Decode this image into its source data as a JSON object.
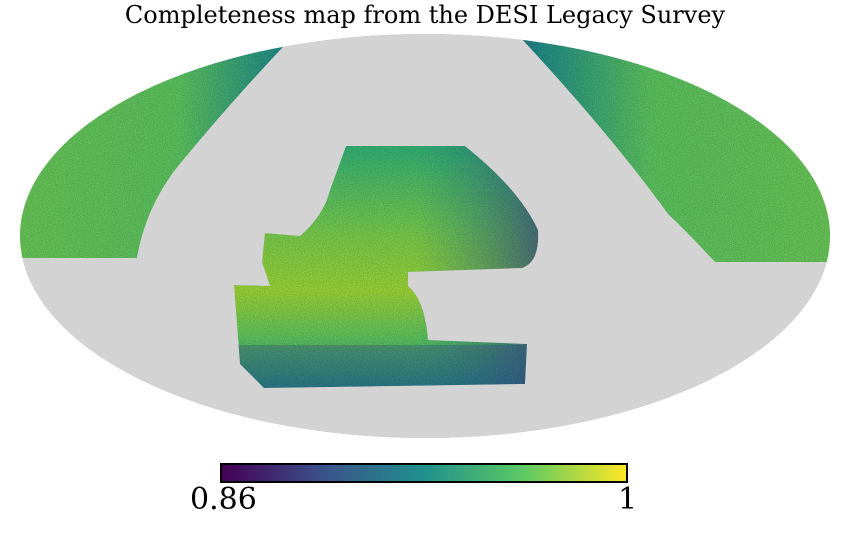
{
  "title": "Completeness map from the DESI Legacy Survey",
  "colorbar": {
    "min_label": "0.86",
    "max_label": "1",
    "min": 0.86,
    "max": 1,
    "colormap": "viridis",
    "colors": [
      "#440154",
      "#3b528b",
      "#21918c",
      "#5ec962",
      "#fde725"
    ]
  },
  "map": {
    "projection": "mollweide",
    "background_color": "#d3d3d3",
    "typical_completeness": 0.96
  }
}
